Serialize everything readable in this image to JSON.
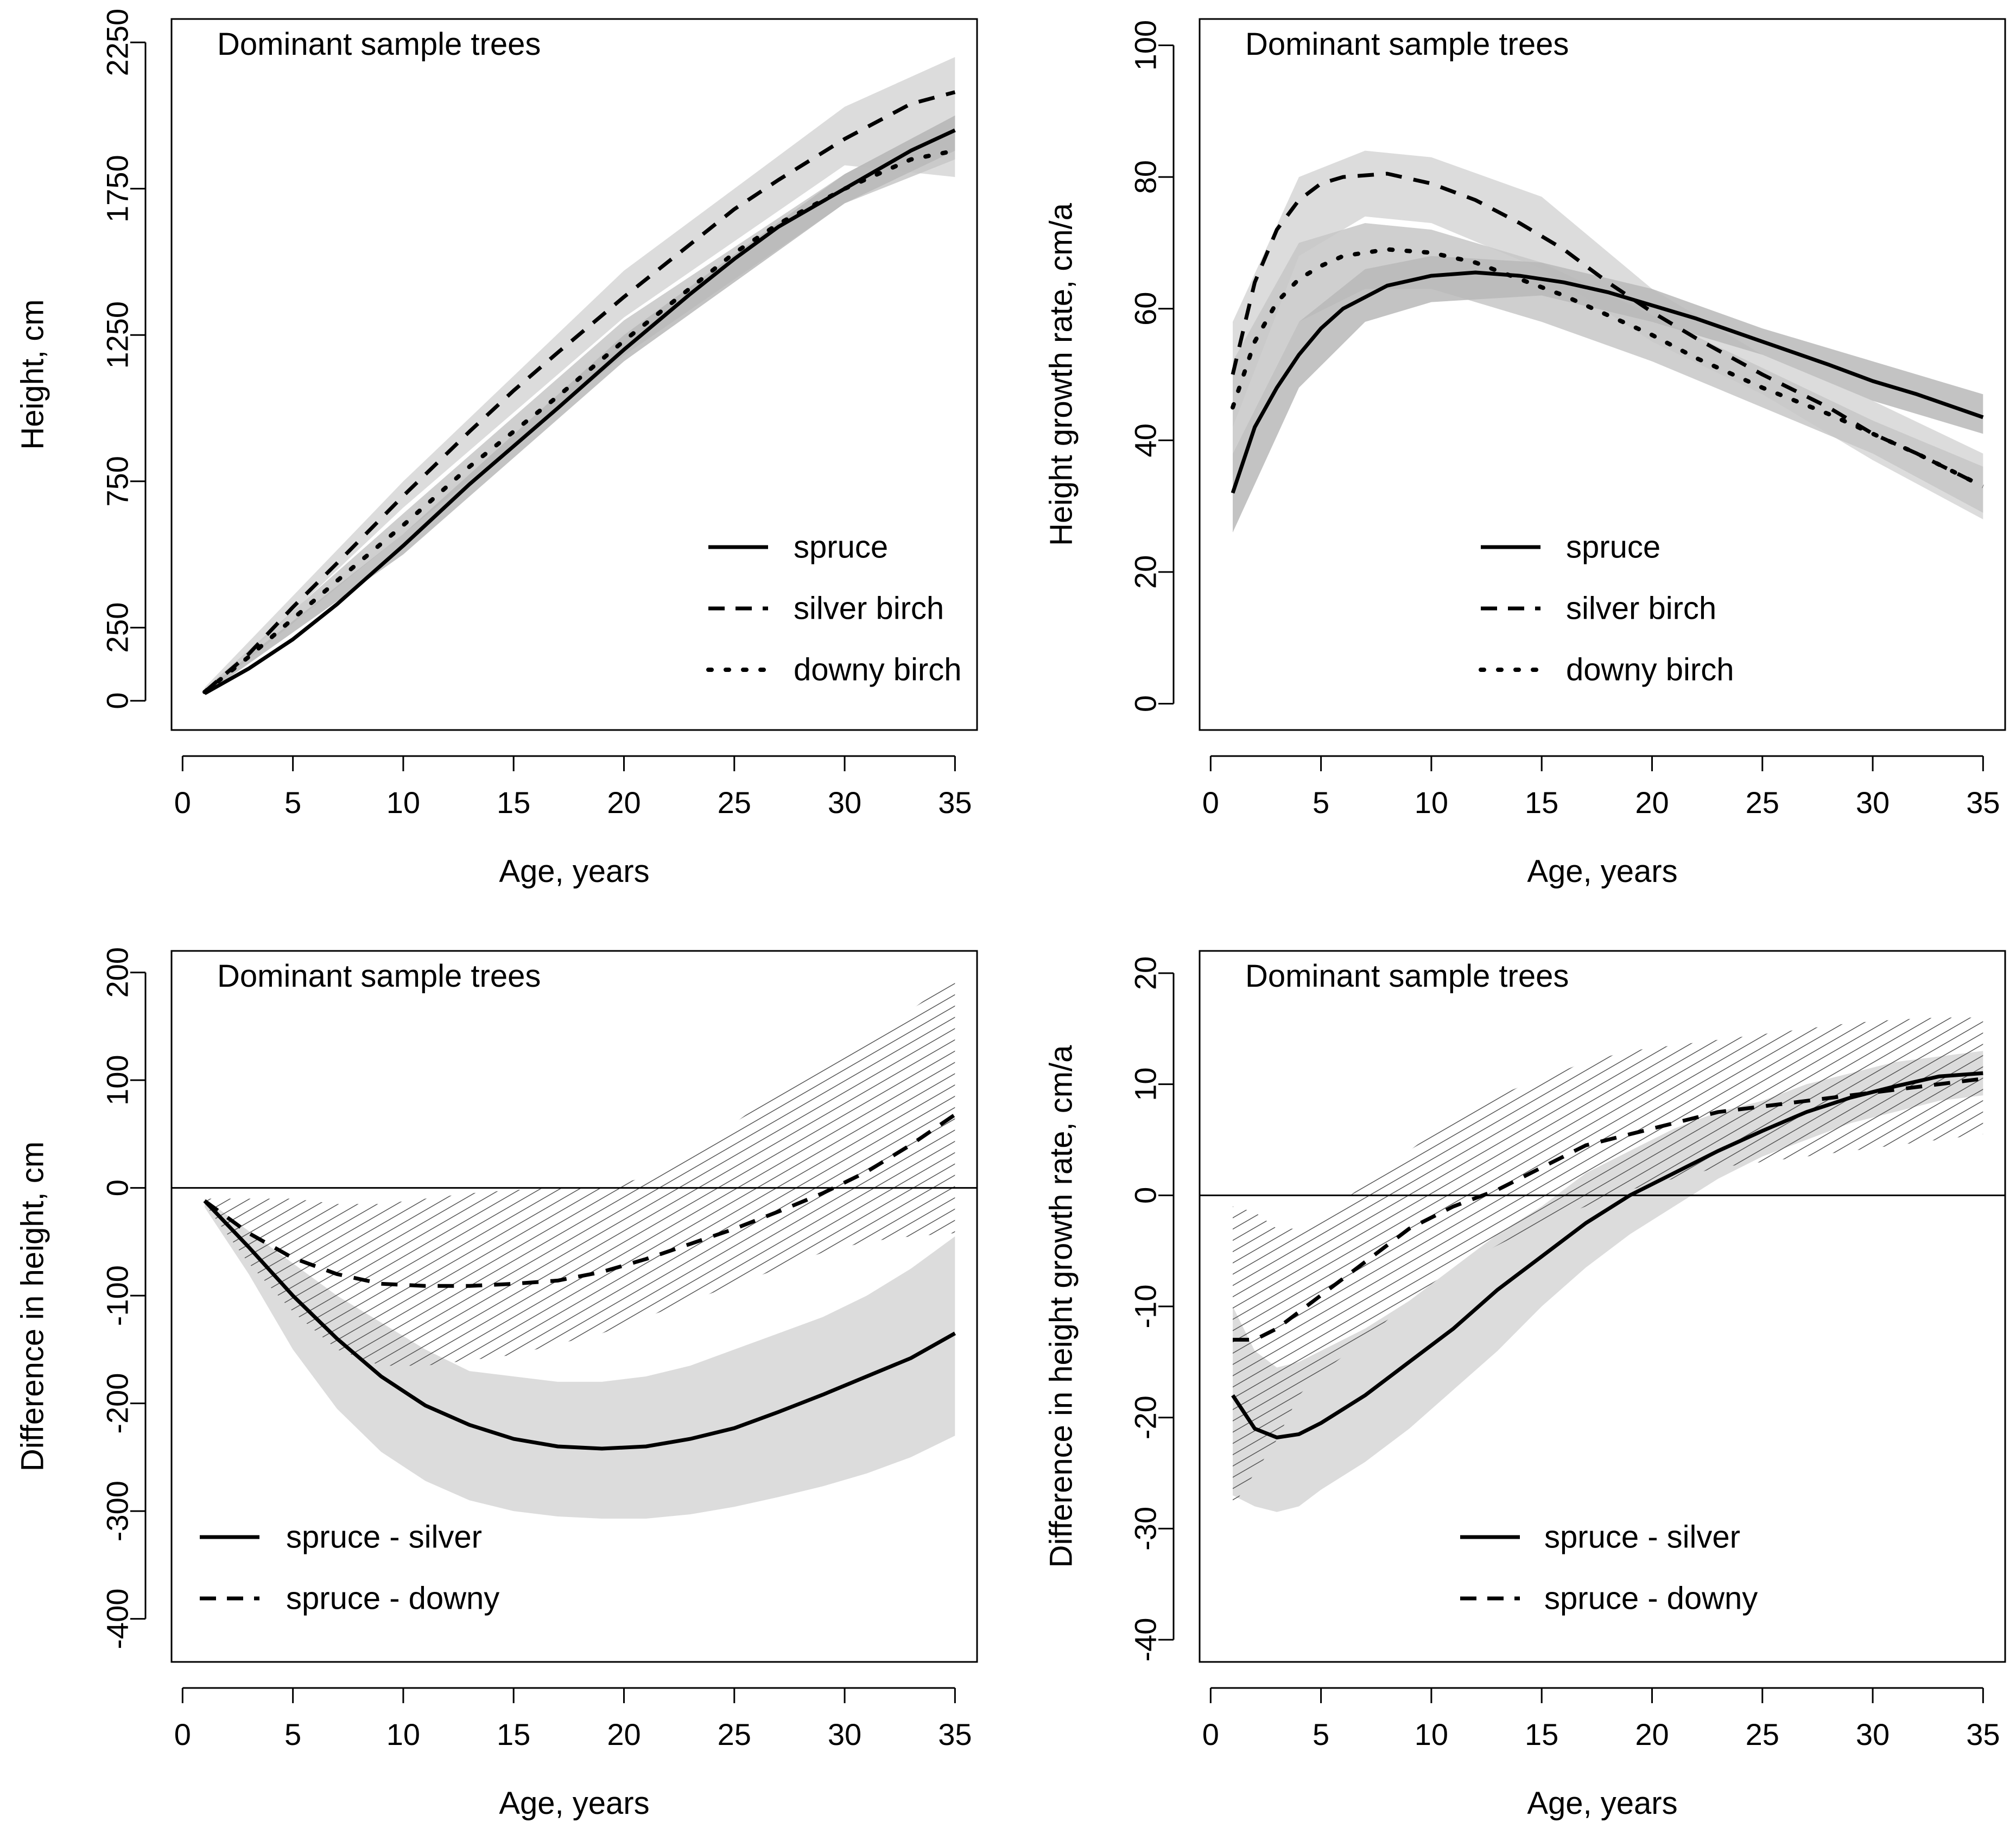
{
  "chart_data": [
    {
      "type": "line",
      "panel_label": "Dominant sample trees",
      "xlabel": "Age, years",
      "ylabel": "Height, cm",
      "xlim": [
        -0.5,
        36
      ],
      "ylim": [
        -100,
        2330
      ],
      "xticks": [
        0,
        5,
        10,
        15,
        20,
        25,
        30,
        35
      ],
      "yticks": [
        0,
        250,
        750,
        1250,
        1750,
        2250
      ],
      "legend": {
        "position": "bottom-right",
        "entries": [
          {
            "label": "spruce",
            "style": "solid"
          },
          {
            "label": "silver birch",
            "style": "dashed"
          },
          {
            "label": "downy birch",
            "style": "dotted"
          }
        ]
      },
      "series": [
        {
          "name": "spruce",
          "style": "solid",
          "x": [
            1,
            3,
            5,
            7,
            10,
            13,
            15,
            17,
            20,
            23,
            25,
            27,
            30,
            33,
            35
          ],
          "y": [
            25,
            110,
            210,
            330,
            530,
            740,
            870,
            1000,
            1200,
            1390,
            1510,
            1620,
            1750,
            1880,
            1950
          ]
        },
        {
          "name": "silver birch",
          "style": "dashed",
          "x": [
            1,
            3,
            5,
            7,
            10,
            13,
            15,
            17,
            20,
            23,
            25,
            27,
            30,
            33,
            35
          ],
          "y": [
            30,
            160,
            320,
            470,
            700,
            920,
            1060,
            1190,
            1380,
            1560,
            1680,
            1780,
            1920,
            2040,
            2080
          ]
        },
        {
          "name": "downy birch",
          "style": "dotted",
          "x": [
            1,
            3,
            5,
            7,
            10,
            13,
            15,
            17,
            20,
            23,
            25,
            27,
            30,
            33,
            35
          ],
          "y": [
            30,
            150,
            280,
            410,
            600,
            800,
            920,
            1040,
            1230,
            1410,
            1530,
            1630,
            1750,
            1850,
            1880
          ]
        }
      ],
      "bands": [
        {
          "name": "silver birch interval",
          "x": [
            1,
            10,
            20,
            30,
            35
          ],
          "lower": [
            20,
            660,
            1310,
            1830,
            1790
          ],
          "upper": [
            45,
            750,
            1470,
            2030,
            2200
          ]
        },
        {
          "name": "downy birch interval",
          "x": [
            1,
            10,
            20,
            30,
            35
          ],
          "lower": [
            20,
            570,
            1180,
            1700,
            1850
          ],
          "upper": [
            40,
            640,
            1300,
            1800,
            2000
          ]
        },
        {
          "name": "spruce interval",
          "x": [
            1,
            10,
            20,
            30,
            35
          ],
          "lower": [
            20,
            500,
            1160,
            1700,
            1880
          ],
          "upper": [
            35,
            570,
            1250,
            1800,
            2000
          ]
        }
      ]
    },
    {
      "type": "line",
      "panel_label": "Dominant sample trees",
      "xlabel": "Age, years",
      "ylabel": "Height growth rate, cm/a",
      "xlim": [
        -0.5,
        36
      ],
      "ylim": [
        -4,
        104
      ],
      "xticks": [
        0,
        5,
        10,
        15,
        20,
        25,
        30,
        35
      ],
      "yticks": [
        0,
        20,
        40,
        60,
        80,
        100
      ],
      "legend": {
        "position": "bottom-center",
        "entries": [
          {
            "label": "spruce",
            "style": "solid"
          },
          {
            "label": "silver birch",
            "style": "dashed"
          },
          {
            "label": "downy birch",
            "style": "dotted"
          }
        ]
      },
      "series": [
        {
          "name": "spruce",
          "style": "solid",
          "x": [
            1,
            2,
            3,
            4,
            5,
            6,
            8,
            10,
            12,
            14,
            16,
            18,
            20,
            22,
            25,
            28,
            30,
            32,
            35
          ],
          "y": [
            32,
            42,
            48,
            53,
            57,
            60,
            63.5,
            65,
            65.5,
            65,
            64,
            62.5,
            60.5,
            58.5,
            55,
            51.5,
            49,
            47,
            43.5
          ]
        },
        {
          "name": "silver birch",
          "style": "dashed",
          "x": [
            1,
            2,
            3,
            4,
            5,
            6,
            8,
            10,
            12,
            14,
            16,
            18,
            20,
            22,
            25,
            28,
            30,
            32,
            35
          ],
          "y": [
            50,
            64,
            72,
            76.5,
            79,
            80,
            80.5,
            79,
            76.5,
            73,
            69,
            64,
            59.5,
            55.5,
            50,
            45,
            41,
            38,
            33
          ]
        },
        {
          "name": "downy birch",
          "style": "dotted",
          "x": [
            1,
            2,
            3,
            4,
            5,
            6,
            8,
            10,
            12,
            14,
            16,
            18,
            20,
            22,
            25,
            28,
            30,
            32,
            35
          ],
          "y": [
            45,
            55,
            61,
            64.5,
            66.5,
            68,
            69,
            68.5,
            67,
            64.5,
            62,
            59,
            56,
            52.5,
            48,
            44,
            41,
            38,
            33
          ]
        }
      ],
      "bands": [
        {
          "name": "silver birch interval",
          "x": [
            1,
            4,
            7,
            10,
            15,
            20,
            25,
            30,
            35
          ],
          "lower": [
            42,
            68,
            74,
            73,
            66,
            55,
            47,
            37,
            28
          ],
          "upper": [
            58,
            80,
            84,
            83,
            77,
            63,
            53,
            46,
            38
          ]
        },
        {
          "name": "downy birch interval",
          "x": [
            1,
            4,
            7,
            10,
            15,
            20,
            25,
            30,
            35
          ],
          "lower": [
            38,
            58,
            63,
            63,
            58,
            52,
            45,
            38,
            29
          ],
          "upper": [
            52,
            70,
            73,
            72,
            67,
            59,
            51,
            43,
            36
          ]
        },
        {
          "name": "spruce interval",
          "x": [
            1,
            4,
            7,
            10,
            15,
            20,
            25,
            30,
            35
          ],
          "lower": [
            26,
            48,
            58,
            61,
            62,
            58,
            53,
            46,
            41
          ],
          "upper": [
            38,
            58,
            66,
            68,
            67,
            63,
            57,
            52,
            47
          ]
        }
      ]
    },
    {
      "type": "line",
      "panel_label": "Dominant sample trees",
      "xlabel": "Age, years",
      "ylabel": "Difference in height, cm",
      "xlim": [
        -0.5,
        36
      ],
      "ylim": [
        -440,
        220
      ],
      "xticks": [
        0,
        5,
        10,
        15,
        20,
        25,
        30,
        35
      ],
      "yticks": [
        -400,
        -300,
        -200,
        -100,
        0,
        100,
        200
      ],
      "reference_line": 0,
      "legend": {
        "position": "bottom-left",
        "entries": [
          {
            "label": "spruce - silver",
            "style": "solid"
          },
          {
            "label": "spruce - downy",
            "style": "dashed"
          }
        ]
      },
      "series": [
        {
          "name": "spruce - silver",
          "style": "solid",
          "x": [
            1,
            3,
            5,
            7,
            9,
            11,
            13,
            15,
            17,
            19,
            21,
            23,
            25,
            27,
            29,
            31,
            33,
            35
          ],
          "y": [
            -12,
            -55,
            -100,
            -140,
            -175,
            -202,
            -220,
            -233,
            -240,
            -242,
            -240,
            -233,
            -223,
            -208,
            -192,
            -175,
            -158,
            -135
          ]
        },
        {
          "name": "spruce - downy",
          "style": "dashed",
          "x": [
            1,
            3,
            5,
            7,
            9,
            11,
            13,
            15,
            17,
            19,
            21,
            23,
            25,
            27,
            29,
            31,
            33,
            35
          ],
          "y": [
            -12,
            -42,
            -65,
            -80,
            -89,
            -91,
            -91,
            -89,
            -86,
            -78,
            -66,
            -52,
            -38,
            -22,
            -5,
            15,
            40,
            68
          ]
        }
      ],
      "bands": [
        {
          "name": "spruce - silver interval",
          "shading": "grey",
          "x": [
            1,
            3,
            5,
            7,
            9,
            11,
            13,
            15,
            17,
            19,
            21,
            23,
            25,
            27,
            29,
            31,
            33,
            35
          ],
          "lower": [
            -18,
            -80,
            -150,
            -205,
            -245,
            -272,
            -290,
            -300,
            -305,
            -307,
            -307,
            -303,
            -296,
            -287,
            -277,
            -265,
            -250,
            -230
          ],
          "upper": [
            -10,
            -40,
            -70,
            -100,
            -125,
            -150,
            -170,
            -175,
            -180,
            -180,
            -175,
            -165,
            -150,
            -135,
            -120,
            -100,
            -75,
            -45
          ]
        },
        {
          "name": "spruce - downy interval",
          "shading": "hatched",
          "x": [
            1,
            3,
            5,
            7,
            9,
            11,
            13,
            15,
            17,
            19,
            21,
            23,
            25,
            27,
            29,
            31,
            33,
            35
          ],
          "lower": [
            -15,
            -70,
            -115,
            -150,
            -165,
            -165,
            -160,
            -155,
            -145,
            -135,
            -120,
            -105,
            -90,
            -75,
            -60,
            -50,
            -45,
            -42
          ],
          "upper": [
            -10,
            -10,
            -10,
            -15,
            -15,
            -10,
            -5,
            -2,
            0,
            0,
            10,
            30,
            60,
            90,
            115,
            140,
            165,
            195
          ]
        }
      ]
    },
    {
      "type": "line",
      "panel_label": "Dominant sample trees",
      "xlabel": "Age, years",
      "ylabel": "Difference in height growth rate, cm/a",
      "xlim": [
        -0.5,
        36
      ],
      "ylim": [
        -42,
        22
      ],
      "xticks": [
        0,
        5,
        10,
        15,
        20,
        25,
        30,
        35
      ],
      "yticks": [
        -40,
        -30,
        -20,
        -10,
        0,
        10,
        20
      ],
      "reference_line": 0,
      "legend": {
        "position": "bottom-center",
        "entries": [
          {
            "label": "spruce - silver",
            "style": "solid"
          },
          {
            "label": "spruce - downy",
            "style": "dashed"
          }
        ]
      },
      "series": [
        {
          "name": "spruce - silver",
          "style": "solid",
          "x": [
            1,
            2,
            3,
            4,
            5,
            7,
            9,
            11,
            13,
            15,
            17,
            19,
            21,
            23,
            25,
            27,
            29,
            31,
            33,
            35
          ],
          "y": [
            -18,
            -21,
            -21.8,
            -21.5,
            -20.5,
            -18,
            -15,
            -12,
            -8.5,
            -5.5,
            -2.5,
            0,
            2,
            4,
            5.8,
            7.5,
            8.8,
            9.8,
            10.7,
            11
          ]
        },
        {
          "name": "spruce - downy",
          "style": "dashed",
          "x": [
            1,
            2,
            3,
            4,
            5,
            7,
            9,
            11,
            13,
            15,
            17,
            19,
            21,
            23,
            25,
            27,
            29,
            31,
            33,
            35
          ],
          "y": [
            -13,
            -13,
            -12,
            -10.5,
            -9,
            -6,
            -3,
            -1,
            0.5,
            2.5,
            4.5,
            5.5,
            6.5,
            7.5,
            8,
            8.5,
            9,
            9.5,
            10,
            10.5
          ]
        }
      ],
      "bands": [
        {
          "name": "spruce - silver interval",
          "shading": "grey",
          "x": [
            1,
            2,
            3,
            4,
            5,
            7,
            9,
            11,
            13,
            15,
            17,
            19,
            21,
            23,
            25,
            27,
            29,
            31,
            33,
            35
          ],
          "lower": [
            -27,
            -28,
            -28.5,
            -28,
            -26.5,
            -24,
            -21,
            -17.5,
            -14,
            -10,
            -6.5,
            -3.5,
            -1,
            1.5,
            3.5,
            5,
            6.5,
            7.5,
            8.5,
            9
          ],
          "upper": [
            -10,
            -14,
            -15.5,
            -15,
            -14,
            -12,
            -9.5,
            -6.5,
            -3.5,
            -1,
            2,
            4,
            6,
            7.5,
            8.5,
            10,
            11,
            12,
            12.5,
            13
          ]
        },
        {
          "name": "spruce - downy interval",
          "shading": "hatched",
          "x": [
            1,
            2,
            3,
            4,
            5,
            7,
            9,
            11,
            13,
            15,
            17,
            19,
            21,
            23,
            25,
            27,
            29,
            31,
            33,
            35
          ],
          "lower": [
            -28,
            -25,
            -22,
            -18,
            -16,
            -13,
            -9.5,
            -6.5,
            -4.5,
            -2.5,
            -1,
            0.5,
            1.5,
            2.5,
            3,
            3.5,
            4,
            4.5,
            5,
            5.5
          ],
          "upper": [
            -1,
            -1.5,
            -3,
            -3,
            -2,
            1,
            4,
            7,
            9,
            10.5,
            12,
            13,
            13.5,
            14,
            14.5,
            15,
            15.5,
            15.8,
            16,
            16
          ]
        }
      ]
    }
  ]
}
